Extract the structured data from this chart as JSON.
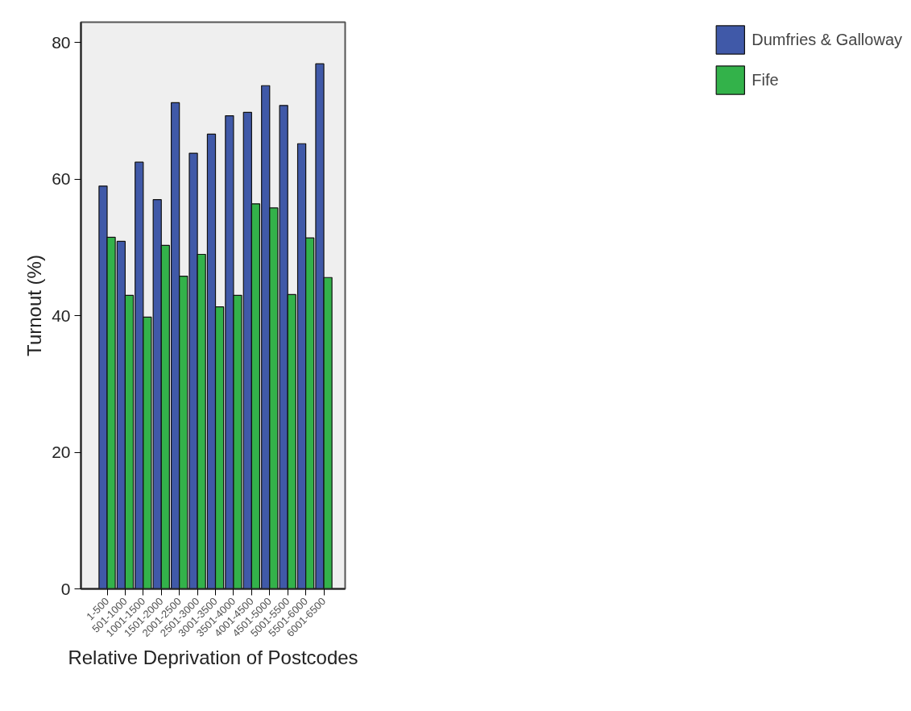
{
  "chart_data": {
    "type": "bar",
    "xlabel": "Relative Deprivation of Postcodes",
    "ylabel": "Turnout (%)",
    "categories": [
      "1-500",
      "501-1000",
      "1001-1500",
      "1501-2000",
      "2001-2500",
      "2501-3000",
      "3001-3500",
      "3501-4000",
      "4001-4500",
      "4501-5000",
      "5001-5500",
      "5501-6000",
      "6001-6500"
    ],
    "series": [
      {
        "name": "Dumfries & Galloway",
        "color": "#4059a8",
        "values": [
          59.0,
          50.9,
          62.5,
          57.0,
          71.2,
          63.8,
          66.6,
          69.3,
          69.8,
          73.7,
          70.8,
          65.2,
          76.9
        ]
      },
      {
        "name": "Fife",
        "color": "#33b24a",
        "values": [
          51.5,
          43.0,
          39.8,
          50.3,
          45.8,
          49.0,
          41.3,
          43.0,
          56.4,
          55.8,
          43.1,
          51.4,
          45.6
        ]
      }
    ],
    "ylim": [
      0,
      83
    ],
    "yticks": [
      0,
      20,
      40,
      60,
      80
    ],
    "grid": false,
    "legend": "right"
  }
}
